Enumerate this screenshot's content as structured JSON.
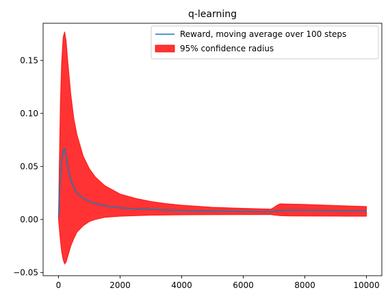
{
  "chart_data": {
    "type": "line",
    "title": "q-learning",
    "xlabel": "",
    "ylabel": "",
    "xlim": [
      -500,
      10500
    ],
    "ylim": [
      -0.053,
      0.185
    ],
    "xticks": [
      0,
      2000,
      4000,
      6000,
      8000,
      10000
    ],
    "xtick_labels": [
      "0",
      "2000",
      "4000",
      "6000",
      "8000",
      "10000"
    ],
    "yticks": [
      -0.05,
      0.0,
      0.05,
      0.1,
      0.15
    ],
    "ytick_labels": [
      "−0.05",
      "0.00",
      "0.05",
      "0.10",
      "0.15"
    ],
    "grid": false,
    "legend_position": "top-right",
    "series": [
      {
        "name": "Reward, moving average over 100 steps",
        "kind": "line",
        "color": "#1f77b4",
        "x": [
          0,
          50,
          100,
          150,
          200,
          250,
          300,
          400,
          500,
          600,
          800,
          1000,
          1200,
          1500,
          2000,
          2500,
          3000,
          3500,
          4000,
          5000,
          6000,
          6900,
          7000,
          7200,
          7500,
          8000,
          9000,
          10000
        ],
        "y": [
          0.002,
          0.035,
          0.055,
          0.065,
          0.067,
          0.06,
          0.05,
          0.037,
          0.03,
          0.025,
          0.02,
          0.017,
          0.015,
          0.013,
          0.011,
          0.01,
          0.0095,
          0.009,
          0.0085,
          0.008,
          0.0075,
          0.0072,
          0.0078,
          0.0085,
          0.0087,
          0.0086,
          0.0084,
          0.0082
        ]
      },
      {
        "name": "95% confidence radius",
        "kind": "band",
        "color": "#ff0000",
        "opacity": 0.8,
        "x": [
          0,
          30,
          60,
          100,
          150,
          200,
          250,
          300,
          400,
          500,
          600,
          800,
          1000,
          1200,
          1500,
          2000,
          2500,
          3000,
          3500,
          4000,
          5000,
          6000,
          6900,
          7000,
          7100,
          7200,
          7500,
          8000,
          9000,
          10000
        ],
        "upper": [
          0.005,
          0.06,
          0.11,
          0.148,
          0.172,
          0.177,
          0.168,
          0.15,
          0.118,
          0.095,
          0.08,
          0.06,
          0.048,
          0.04,
          0.032,
          0.024,
          0.02,
          0.017,
          0.015,
          0.0135,
          0.0115,
          0.0105,
          0.0098,
          0.0115,
          0.0135,
          0.0148,
          0.0146,
          0.0142,
          0.0132,
          0.0122
        ],
        "lower": [
          0.0,
          -0.01,
          -0.02,
          -0.03,
          -0.038,
          -0.042,
          -0.04,
          -0.035,
          -0.025,
          -0.018,
          -0.012,
          -0.006,
          -0.002,
          0.0,
          0.002,
          0.003,
          0.0035,
          0.004,
          0.0042,
          0.0043,
          0.0045,
          0.0046,
          0.0046,
          0.0042,
          0.0038,
          0.0035,
          0.0033,
          0.0032,
          0.0031,
          0.003
        ]
      }
    ]
  }
}
